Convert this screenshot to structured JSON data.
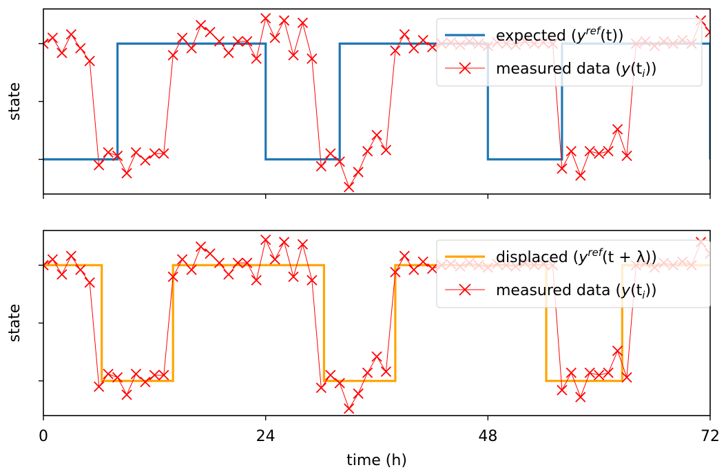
{
  "chart_data": [
    {
      "type": "line",
      "xlabel": "",
      "ylabel": "state",
      "xlim": [
        0,
        72
      ],
      "ylim": [
        -0.3,
        1.3
      ],
      "x_ticks": [
        0,
        24,
        48,
        72
      ],
      "y_ticks": [
        0,
        0.5,
        1
      ],
      "tick_labels_visible": false,
      "grid": false,
      "legend_position": "top-right",
      "series": [
        {
          "name": "expected (y^ref(t))",
          "style": "step",
          "color": "#1f77b4",
          "x": [
            0,
            8,
            8,
            24,
            24,
            32,
            32,
            48,
            48,
            56,
            56,
            72,
            72
          ],
          "y": [
            0,
            0,
            1,
            1,
            0,
            0,
            1,
            1,
            0,
            0,
            1,
            1,
            0
          ]
        },
        {
          "name": "measured data (y(t_i))",
          "style": "line-x-markers",
          "color": "#ff0000",
          "x": [
            0,
            1,
            2,
            3,
            4,
            5,
            6,
            7,
            8,
            9,
            10,
            11,
            12,
            13,
            14,
            15,
            16,
            17,
            18,
            19,
            20,
            21,
            22,
            23,
            24,
            25,
            26,
            27,
            28,
            29,
            30,
            31,
            32,
            33,
            34,
            35,
            36,
            37,
            38,
            39,
            40,
            41,
            42,
            43,
            44,
            45,
            46,
            47,
            48,
            49,
            50,
            51,
            52,
            53,
            54,
            55,
            56,
            57,
            58,
            59,
            60,
            61,
            62,
            63,
            64,
            65,
            66,
            67,
            68,
            69,
            70,
            71,
            72
          ],
          "y": [
            1.0,
            1.05,
            0.92,
            1.08,
            0.96,
            0.85,
            -0.05,
            0.06,
            0.03,
            -0.12,
            0.06,
            -0.01,
            0.05,
            0.05,
            0.9,
            1.05,
            0.96,
            1.16,
            1.1,
            1.02,
            0.92,
            1.02,
            1.02,
            0.87,
            1.22,
            1.05,
            1.2,
            0.9,
            1.18,
            0.87,
            -0.06,
            0.05,
            -0.02,
            -0.24,
            -0.11,
            0.07,
            0.21,
            0.08,
            0.94,
            1.08,
            0.96,
            1.03,
            0.97,
            1.0,
            1.01,
            0.99,
            1.02,
            1.0,
            0.98,
            1.01,
            1.0,
            0.99,
            1.02,
            1.0,
            1.01,
            1.0,
            -0.08,
            0.07,
            -0.14,
            0.07,
            0.05,
            0.07,
            0.26,
            0.03,
            1.0,
            1.02,
            0.98,
            1.02,
            1.0,
            1.03,
            1.0,
            1.2,
            1.1
          ]
        }
      ]
    },
    {
      "type": "line",
      "xlabel": "time (h)",
      "ylabel": "state",
      "xlim": [
        0,
        72
      ],
      "ylim": [
        -0.3,
        1.3
      ],
      "x_ticks": [
        0,
        24,
        48,
        72
      ],
      "x_tick_labels": [
        "0",
        "24",
        "48",
        "72"
      ],
      "y_ticks": [
        0,
        0.5,
        1
      ],
      "grid": false,
      "legend_position": "top-right",
      "series": [
        {
          "name": "displaced (y^ref(t + λ))",
          "style": "step",
          "color": "#ffa500",
          "x": [
            0,
            6.3,
            6.3,
            14,
            14,
            30.3,
            30.3,
            38,
            38,
            54.3,
            54.3,
            62.5,
            62.5,
            72
          ],
          "y": [
            1,
            1,
            0,
            0,
            1,
            1,
            0,
            0,
            1,
            1,
            0,
            0,
            1,
            1
          ]
        },
        {
          "name": "measured data (y(t_i))",
          "style": "line-x-markers",
          "color": "#ff0000",
          "same_data_as_top_panel": true
        }
      ]
    }
  ],
  "legend_top": [
    {
      "pre": "expected (",
      "math": "y",
      "sup": "ref",
      "post_math": "(t)",
      "post": ")",
      "color": "#1f77b4",
      "kind": "line"
    },
    {
      "pre": "measured data (",
      "math": "y",
      "sup": "",
      "post_math": "(t",
      "sub": "i",
      "post2": "))",
      "color": "#ff0000",
      "kind": "marker"
    }
  ],
  "legend_bottom": [
    {
      "pre": "displaced (",
      "math": "y",
      "sup": "ref",
      "post_math": "(t + λ)",
      "post": ")",
      "color": "#ffa500",
      "kind": "line"
    },
    {
      "pre": "measured data (",
      "math": "y",
      "sup": "",
      "post_math": "(t",
      "sub": "i",
      "post2": "))",
      "color": "#ff0000",
      "kind": "marker"
    }
  ]
}
